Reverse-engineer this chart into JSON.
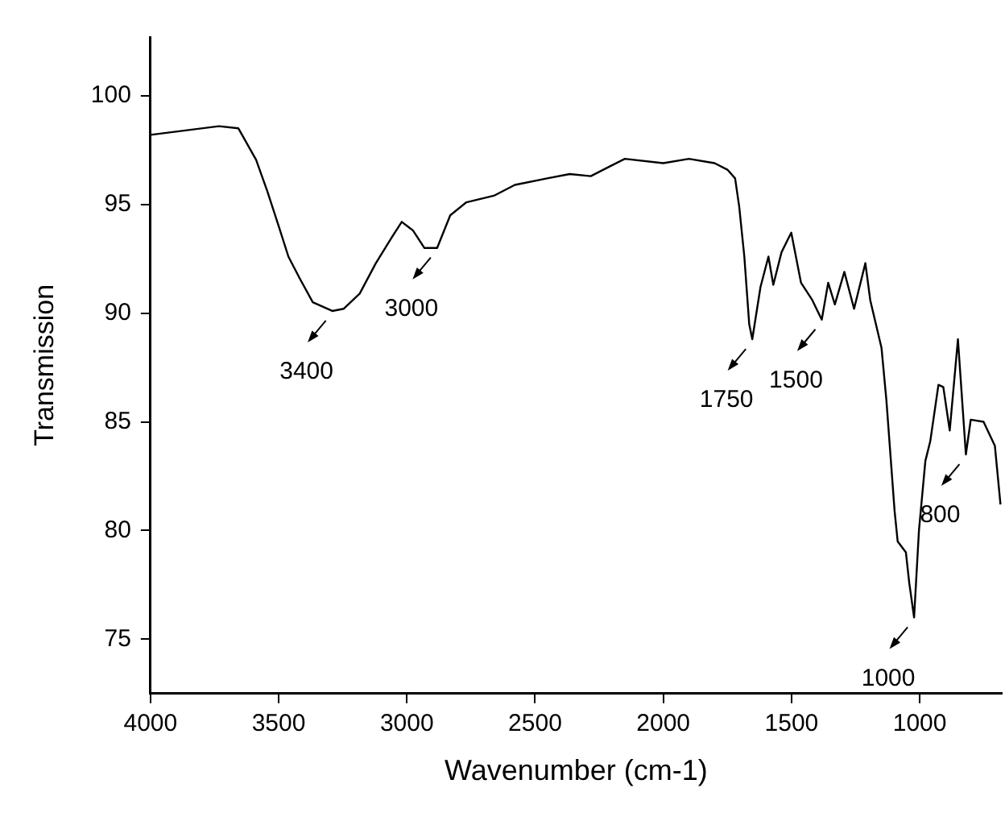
{
  "chart_data": {
    "type": "line",
    "xlabel": "Wavenumber (cm-1)",
    "ylabel": "Transmission",
    "xlim": [
      4000,
      680
    ],
    "ylim": [
      72.5,
      102.7
    ],
    "xticks": [
      4000,
      3500,
      3000,
      2500,
      2000,
      1500,
      1000
    ],
    "yticks": [
      75,
      80,
      85,
      90,
      95,
      100
    ],
    "grid": false,
    "legend": false,
    "marker": "none",
    "line_style": "solid",
    "series": [
      {
        "color": "#000000",
        "x": [
          4000,
          3733,
          3657,
          3588,
          3544,
          3500,
          3462,
          3418,
          3367,
          3291,
          3247,
          3184,
          3121,
          3058,
          3020,
          2976,
          2932,
          2882,
          2831,
          2768,
          2661,
          2579,
          2453,
          2365,
          2283,
          2200,
          2150,
          2000,
          1900,
          1800,
          1750,
          1720,
          1704,
          1684,
          1665,
          1653,
          1621,
          1590,
          1571,
          1539,
          1514,
          1501,
          1463,
          1419,
          1382,
          1357,
          1331,
          1294,
          1256,
          1212,
          1193,
          1149,
          1130,
          1098,
          1086,
          1054,
          1041,
          1022,
          1003,
          978,
          959,
          927,
          908,
          883,
          851,
          820,
          801,
          751,
          707,
          685
        ],
        "values": [
          98.2,
          98.6,
          98.5,
          97.05,
          95.6,
          94.0,
          92.6,
          91.6,
          90.5,
          90.1,
          90.2,
          90.9,
          92.3,
          93.5,
          94.2,
          93.8,
          93.0,
          93.0,
          94.5,
          95.1,
          95.4,
          95.9,
          96.2,
          96.4,
          96.3,
          96.8,
          97.1,
          96.9,
          97.1,
          96.9,
          96.6,
          96.2,
          94.9,
          92.6,
          89.5,
          88.8,
          91.2,
          92.6,
          91.3,
          92.8,
          93.4,
          93.7,
          91.4,
          90.6,
          89.7,
          91.4,
          90.4,
          91.9,
          90.2,
          92.3,
          90.6,
          88.4,
          86.0,
          80.9,
          79.5,
          79.0,
          77.6,
          76.0,
          80.0,
          83.2,
          84.1,
          86.7,
          86.6,
          84.6,
          88.8,
          83.5,
          85.1,
          85.0,
          83.9,
          81.2
        ]
      }
    ],
    "annotations": [
      {
        "text": "3400",
        "x": 3291,
        "y": 90.1
      },
      {
        "text": "3000",
        "x": 2882,
        "y": 93.0
      },
      {
        "text": "1750",
        "x": 1653,
        "y": 88.8
      },
      {
        "text": "1500",
        "x": 1382,
        "y": 89.7
      },
      {
        "text": "1000",
        "x": 1022,
        "y": 76.0
      },
      {
        "text": "800",
        "x": 820,
        "y": 83.5
      }
    ]
  }
}
